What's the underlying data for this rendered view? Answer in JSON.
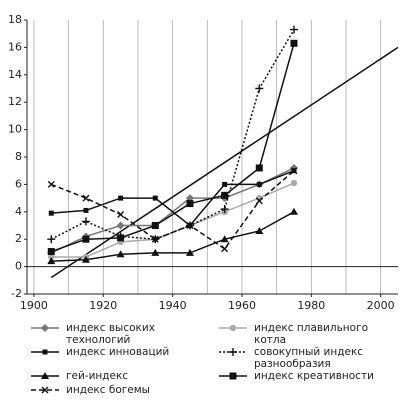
{
  "chart_data": {
    "type": "line",
    "x": [
      1905,
      1915,
      1925,
      1935,
      1945,
      1955,
      1965,
      1975
    ],
    "series": [
      {
        "name": "индекс высоких\nтехнологий",
        "color": "#777",
        "marker": "diamond",
        "dash": "solid",
        "values": [
          1,
          2.2,
          3,
          3,
          5,
          5,
          6,
          7.2
        ]
      },
      {
        "name": "индекс плавильного\nкотла",
        "color": "#aaa",
        "marker": "circle",
        "dash": "solid",
        "values": [
          0.7,
          0.7,
          1.8,
          2,
          3,
          4,
          5,
          6.1
        ]
      },
      {
        "name": "индекс инноваций",
        "color": "#111",
        "marker": "square",
        "dash": "solid",
        "values": [
          3.9,
          4.1,
          5,
          5,
          3,
          6,
          6,
          7
        ]
      },
      {
        "name": "совокупный индекс\nразнообразия",
        "color": "#111",
        "marker": "plus",
        "dash": "dotted",
        "values": [
          2,
          3.3,
          2.2,
          2,
          3,
          4.2,
          13,
          17.3
        ]
      },
      {
        "name": "гей-индекс",
        "color": "#111",
        "marker": "triangle",
        "dash": "solid",
        "values": [
          0.4,
          0.5,
          0.9,
          1,
          1,
          2,
          2.6,
          4
        ]
      },
      {
        "name": "индекс креативности",
        "color": "#111",
        "marker": "bigsquare",
        "dash": "solid",
        "values": [
          1.1,
          2,
          2.1,
          3,
          4.6,
          5.2,
          7.2,
          16.3
        ]
      },
      {
        "name": "индекс богемы",
        "color": "#111",
        "marker": "cross",
        "dash": "dashed",
        "values": [
          6,
          5,
          3.8,
          2,
          3,
          1.3,
          4.8,
          7
        ]
      }
    ],
    "trend": {
      "x": [
        1905,
        2005
      ],
      "values": [
        -0.8,
        16
      ]
    },
    "xlim": [
      1898,
      2005
    ],
    "ylim": [
      -2,
      18
    ],
    "xticks": [
      1900,
      1920,
      1940,
      1960,
      1980,
      2000
    ],
    "xgrid": [
      1900,
      1910,
      1920,
      1930,
      1940,
      1950,
      1960,
      1970,
      1980,
      1990,
      2000
    ],
    "yticks": [
      -2,
      0,
      2,
      4,
      6,
      8,
      10,
      12,
      14,
      16,
      18
    ]
  }
}
